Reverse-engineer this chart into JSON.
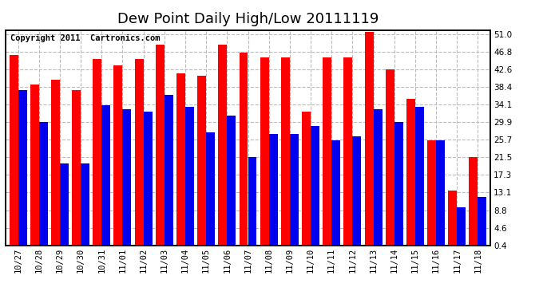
{
  "title": "Dew Point Daily High/Low 20111119",
  "copyright": "Copyright 2011  Cartronics.com",
  "dates": [
    "10/27",
    "10/28",
    "10/29",
    "10/30",
    "10/31",
    "11/01",
    "11/02",
    "11/03",
    "11/04",
    "11/05",
    "11/06",
    "11/07",
    "11/08",
    "11/09",
    "11/10",
    "11/11",
    "11/12",
    "11/13",
    "11/14",
    "11/15",
    "11/16",
    "11/17",
    "11/18"
  ],
  "highs": [
    46.0,
    39.0,
    40.0,
    37.5,
    45.0,
    43.5,
    45.0,
    48.5,
    41.5,
    41.0,
    48.5,
    46.5,
    45.5,
    45.5,
    32.5,
    45.5,
    45.5,
    51.5,
    42.5,
    35.5,
    25.5,
    13.5,
    21.5
  ],
  "lows": [
    37.5,
    30.0,
    20.0,
    20.0,
    34.0,
    33.0,
    32.5,
    36.5,
    33.5,
    27.5,
    31.5,
    21.5,
    27.0,
    27.0,
    29.0,
    25.5,
    26.5,
    33.0,
    30.0,
    33.5,
    25.5,
    9.5,
    12.0
  ],
  "yticks": [
    0.4,
    4.6,
    8.8,
    13.1,
    17.3,
    21.5,
    25.7,
    29.9,
    34.1,
    38.4,
    42.6,
    46.8,
    51.0
  ],
  "ymin": 0.4,
  "ymax": 52.0,
  "high_color": "#FF0000",
  "low_color": "#0000EE",
  "bg_color": "#FFFFFF",
  "plot_bg_color": "#FFFFFF",
  "grid_color": "#BBBBBB",
  "title_fontsize": 13,
  "tick_fontsize": 7.5,
  "copyright_fontsize": 7.5
}
